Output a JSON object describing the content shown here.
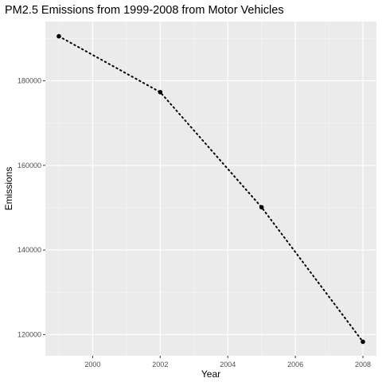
{
  "chart_data": {
    "type": "line",
    "title": "PM2.5 Emissions from 1999-2008 from Motor Vehicles",
    "xlabel": "Year",
    "ylabel": "Emissions",
    "x": [
      1999,
      2002,
      2005,
      2008
    ],
    "series": [
      {
        "values": [
          190500,
          177300,
          150100,
          118300
        ],
        "line_style": "dotted",
        "marker": "circle"
      }
    ],
    "xlim": [
      1998.6,
      2008.4
    ],
    "ylim": [
      115000,
      194000
    ],
    "x_ticks": [
      2000,
      2002,
      2004,
      2006,
      2008
    ],
    "x_tick_labels": [
      "2000",
      "2002",
      "2004",
      "2006",
      "2008"
    ],
    "y_ticks": [
      120000,
      140000,
      160000,
      180000
    ],
    "y_tick_labels": [
      "120000",
      "140000",
      "160000",
      "180000"
    ],
    "grid": true,
    "legend": "none",
    "colors": {
      "panel_background": "#ebebeb",
      "grid_major": "#ffffff",
      "grid_minor": "#f5f5f5",
      "series": "#000000",
      "tick_label": "#4d4d4d",
      "text": "#000000"
    }
  }
}
